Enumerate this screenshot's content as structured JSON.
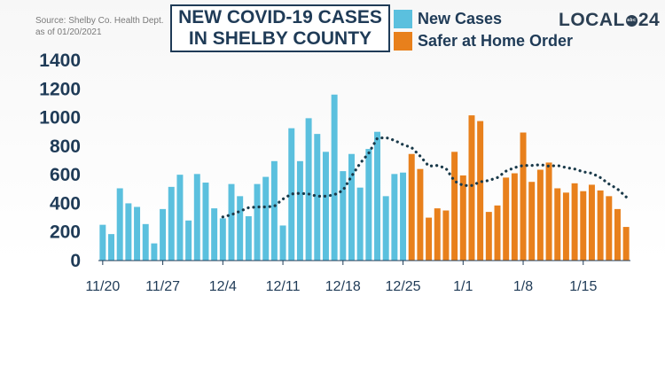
{
  "source": {
    "line1": "Source:  Shelby Co. Health Dept.",
    "line2": "as of 01/20/2021"
  },
  "header": {
    "title_line1": "NEW COVID-19 CASES",
    "title_line2": "IN SHELBY COUNTY"
  },
  "logo": {
    "text_left": "LOCAL",
    "text_ring": "abc",
    "text_right": "24"
  },
  "colors": {
    "new_cases": "#5bc0de",
    "safer_at_home": "#e8801c",
    "trend": "#1a3a4a",
    "axis": "#1f3b57"
  },
  "chart_data": {
    "type": "bar",
    "title": "NEW COVID-19 CASES IN SHELBY COUNTY",
    "ylim": [
      0,
      1400
    ],
    "yticks": [
      0,
      200,
      400,
      600,
      800,
      1000,
      1200,
      1400
    ],
    "xtick_labels": [
      "11/20",
      "11/27",
      "12/4",
      "12/11",
      "12/18",
      "12/25",
      "1/1",
      "1/8",
      "1/15"
    ],
    "xtick_positions": [
      0,
      7,
      14,
      21,
      28,
      35,
      42,
      49,
      56
    ],
    "grid": false,
    "legend": [
      "New Cases",
      "Safer at Home Order"
    ],
    "legend_placement": "top",
    "series": [
      {
        "name": "New Cases",
        "values": [
          250,
          185,
          505,
          400,
          375,
          255,
          120,
          360,
          515,
          600,
          280,
          605,
          545,
          365,
          295,
          535,
          450,
          310,
          535,
          585,
          695,
          245,
          925,
          695,
          995,
          885,
          760,
          1160,
          625,
          745,
          510,
          780,
          900,
          450,
          605,
          615
        ]
      },
      {
        "name": "Safer at Home Order",
        "values": [
          745,
          640,
          300,
          365,
          350,
          760,
          595,
          1015,
          975,
          340,
          385,
          580,
          610,
          895,
          550,
          635,
          685,
          505,
          475,
          540,
          485,
          530,
          490,
          450,
          360,
          235
        ]
      },
      {
        "name": "trend",
        "values": [
          305,
          320,
          345,
          370,
          375,
          375,
          380,
          430,
          465,
          470,
          465,
          450,
          450,
          460,
          490,
          590,
          680,
          750,
          855,
          860,
          840,
          810,
          790,
          730,
          660,
          665,
          645,
          555,
          525,
          525,
          550,
          560,
          580,
          625,
          650,
          665,
          665,
          670,
          660,
          665,
          650,
          640,
          620,
          610,
          580,
          535,
          500,
          445
        ]
      }
    ]
  }
}
